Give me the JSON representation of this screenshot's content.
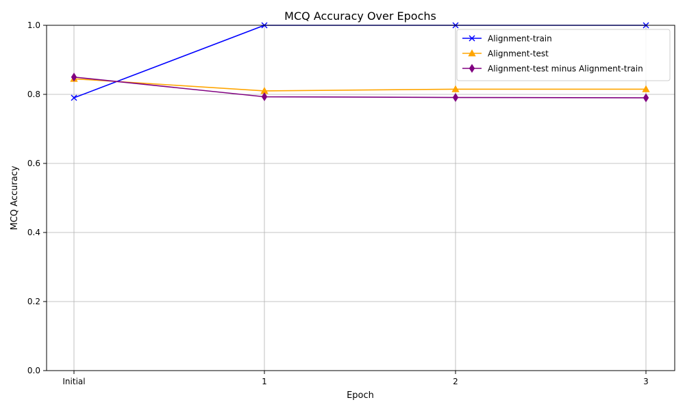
{
  "chart_data": {
    "type": "line",
    "title": "MCQ Accuracy Over Epochs",
    "xlabel": "Epoch",
    "ylabel": "MCQ Accuracy",
    "categories": [
      "Initial",
      "1",
      "2",
      "3"
    ],
    "ylim": [
      0.0,
      1.0
    ],
    "yticks": [
      "0.0",
      "0.2",
      "0.4",
      "0.6",
      "0.8",
      "1.0"
    ],
    "grid": true,
    "legend_position": "top-right",
    "series": [
      {
        "name": "Alignment-train",
        "color": "#0000ff",
        "marker": "x",
        "values": [
          0.79,
          1.0,
          1.0,
          1.0
        ]
      },
      {
        "name": "Alignment-test",
        "color": "#ffa500",
        "marker": "triangle",
        "values": [
          0.845,
          0.81,
          0.815,
          0.815
        ]
      },
      {
        "name": "Alignment-test minus Alignment-train",
        "color": "#800080",
        "marker": "thin-diamond",
        "values": [
          0.85,
          0.793,
          0.791,
          0.79
        ]
      }
    ]
  }
}
